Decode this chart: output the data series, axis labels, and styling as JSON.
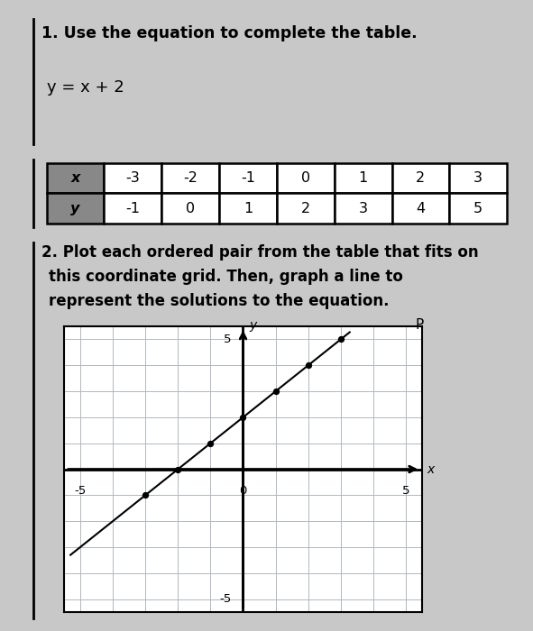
{
  "title1": "1. Use the equation to complete the table.",
  "equation": "y = x + 2",
  "x_values": [
    -3,
    -2,
    -1,
    0,
    1,
    2,
    3
  ],
  "y_values": [
    -1,
    0,
    1,
    2,
    3,
    4,
    5
  ],
  "title2": "2. Plot each ordered pair from the table that fits on",
  "title2b": "this coordinate grid. Then, graph a line to",
  "title2c": "represent the solutions to the equation.",
  "grid_xlim": [
    -5,
    5
  ],
  "grid_ylim": [
    -5,
    5
  ],
  "bg_color": "#c8c8c8",
  "header_cell_color": "#888888",
  "data_cell_color": "#ffffff",
  "border_color": "#000000",
  "label_P": "P",
  "x_axis_label": "x",
  "y_axis_label": "y"
}
